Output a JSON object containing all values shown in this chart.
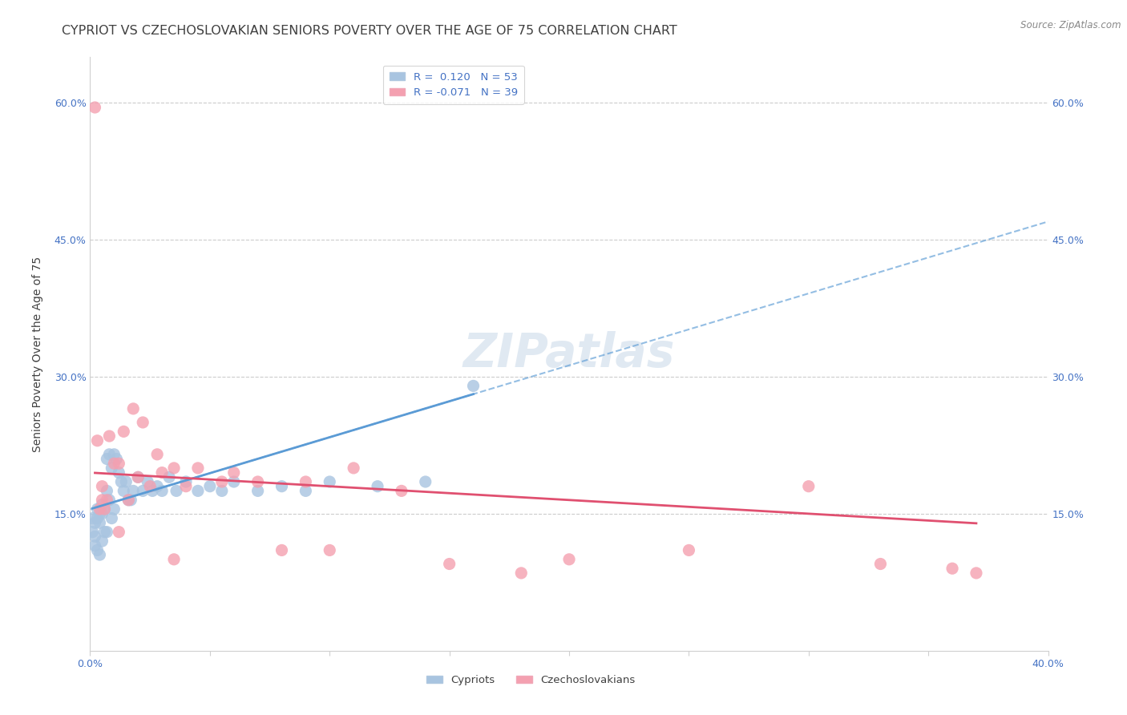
{
  "title": "CYPRIOT VS CZECHOSLOVAKIAN SENIORS POVERTY OVER THE AGE OF 75 CORRELATION CHART",
  "source": "Source: ZipAtlas.com",
  "ylabel": "Seniors Poverty Over the Age of 75",
  "xlim": [
    0.0,
    0.4
  ],
  "ylim": [
    0.0,
    0.65
  ],
  "yticks": [
    0.15,
    0.3,
    0.45,
    0.6
  ],
  "ytick_labels": [
    "15.0%",
    "30.0%",
    "45.0%",
    "60.0%"
  ],
  "xticks": [
    0.0,
    0.05,
    0.1,
    0.15,
    0.2,
    0.25,
    0.3,
    0.35,
    0.4
  ],
  "xtick_labels": [
    "0.0%",
    "",
    "",
    "",
    "",
    "",
    "",
    "",
    "40.0%"
  ],
  "legend_r_cypriot": "0.120",
  "legend_n_cypriot": "53",
  "legend_r_czech": "-0.071",
  "legend_n_czech": "39",
  "cypriot_color": "#a8c4e0",
  "czech_color": "#f4a0b0",
  "trend_cypriot_color": "#5b9bd5",
  "trend_czech_color": "#e05070",
  "watermark": "ZIPatlas",
  "cypriot_x": [
    0.001,
    0.001,
    0.002,
    0.002,
    0.002,
    0.003,
    0.003,
    0.003,
    0.004,
    0.004,
    0.004,
    0.005,
    0.005,
    0.005,
    0.006,
    0.006,
    0.007,
    0.007,
    0.007,
    0.008,
    0.008,
    0.009,
    0.009,
    0.01,
    0.01,
    0.011,
    0.012,
    0.013,
    0.014,
    0.015,
    0.016,
    0.017,
    0.018,
    0.02,
    0.022,
    0.024,
    0.026,
    0.028,
    0.03,
    0.033,
    0.036,
    0.04,
    0.045,
    0.05,
    0.055,
    0.06,
    0.07,
    0.08,
    0.09,
    0.1,
    0.12,
    0.14,
    0.16
  ],
  "cypriot_y": [
    0.145,
    0.13,
    0.14,
    0.125,
    0.115,
    0.155,
    0.145,
    0.11,
    0.15,
    0.14,
    0.105,
    0.16,
    0.15,
    0.12,
    0.155,
    0.13,
    0.21,
    0.175,
    0.13,
    0.215,
    0.165,
    0.2,
    0.145,
    0.215,
    0.155,
    0.21,
    0.195,
    0.185,
    0.175,
    0.185,
    0.165,
    0.165,
    0.175,
    0.19,
    0.175,
    0.185,
    0.175,
    0.18,
    0.175,
    0.19,
    0.175,
    0.185,
    0.175,
    0.18,
    0.175,
    0.185,
    0.175,
    0.18,
    0.175,
    0.185,
    0.18,
    0.185,
    0.29
  ],
  "czech_x": [
    0.002,
    0.003,
    0.004,
    0.005,
    0.006,
    0.007,
    0.008,
    0.01,
    0.012,
    0.014,
    0.016,
    0.018,
    0.02,
    0.022,
    0.025,
    0.028,
    0.03,
    0.035,
    0.04,
    0.045,
    0.055,
    0.06,
    0.07,
    0.08,
    0.09,
    0.1,
    0.11,
    0.13,
    0.15,
    0.18,
    0.2,
    0.25,
    0.3,
    0.33,
    0.36,
    0.37,
    0.035,
    0.012,
    0.005
  ],
  "czech_y": [
    0.595,
    0.23,
    0.155,
    0.18,
    0.155,
    0.165,
    0.235,
    0.205,
    0.205,
    0.24,
    0.165,
    0.265,
    0.19,
    0.25,
    0.18,
    0.215,
    0.195,
    0.2,
    0.18,
    0.2,
    0.185,
    0.195,
    0.185,
    0.11,
    0.185,
    0.11,
    0.2,
    0.175,
    0.095,
    0.085,
    0.1,
    0.11,
    0.18,
    0.095,
    0.09,
    0.085,
    0.1,
    0.13,
    0.165
  ],
  "background_color": "#ffffff",
  "grid_color": "#cccccc",
  "axis_color": "#4472c4",
  "title_color": "#404040",
  "title_fontsize": 11.5,
  "ylabel_fontsize": 10,
  "source_fontsize": 8.5,
  "tick_label_fontsize": 9,
  "legend_fontsize": 9.5,
  "watermark_color": "#c8d8e8",
  "watermark_fontsize": 42
}
